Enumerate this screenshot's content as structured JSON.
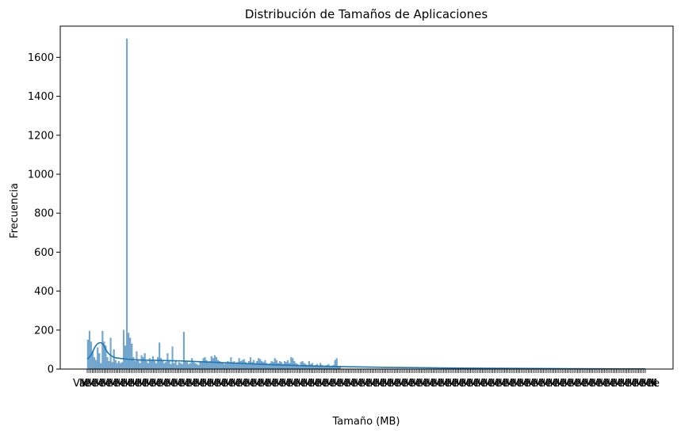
{
  "chart_data": {
    "type": "bar",
    "title": "Distribución de Tamaños de Aplicaciones",
    "xlabel": "Tamaño (MB)",
    "ylabel": "Frecuencia",
    "ylim": [
      0,
      1760
    ],
    "yticks": [
      0,
      200,
      400,
      600,
      800,
      1000,
      1200,
      1400,
      1600
    ],
    "grid": false,
    "legend": "none",
    "x_tick_labels_first": "Va",
    "x_tick_labels_last": "k",
    "colors": {
      "bar": "#4c8dbf",
      "kde": "#1f77b4",
      "axis": "#000000"
    },
    "series": [
      {
        "kind": "histogram",
        "values": [
          150,
          195,
          140,
          90,
          60,
          45,
          110,
          80,
          30,
          195,
          140,
          120,
          60,
          40,
          160,
          35,
          100,
          45,
          30,
          40,
          30,
          35,
          200,
          120,
          1695,
          185,
          160,
          130,
          60,
          40,
          90,
          50,
          30,
          70,
          60,
          80,
          40,
          30,
          55,
          45,
          65,
          40,
          30,
          60,
          135,
          55,
          40,
          30,
          35,
          80,
          40,
          25,
          115,
          30,
          40,
          20,
          35,
          30,
          25,
          190,
          40,
          35,
          25,
          30,
          55,
          40,
          30,
          25,
          20,
          35,
          40,
          55,
          60,
          45,
          35,
          40,
          65,
          55,
          70,
          60,
          45,
          40,
          35,
          30,
          25,
          30,
          40,
          35,
          60,
          35,
          40,
          30,
          35,
          55,
          40,
          45,
          50,
          35,
          30,
          40,
          60,
          35,
          45,
          30,
          40,
          55,
          50,
          40,
          35,
          45,
          30,
          25,
          30,
          40,
          35,
          55,
          45,
          30,
          40,
          35,
          25,
          40,
          35,
          45,
          30,
          60,
          55,
          40,
          30,
          25,
          20,
          35,
          40,
          30,
          25,
          20,
          40,
          25,
          30,
          15,
          20,
          25,
          15,
          30,
          20,
          10,
          15,
          20,
          25,
          15,
          10,
          20,
          45,
          55,
          10,
          15
        ]
      },
      {
        "kind": "kde",
        "x": [
          0,
          2,
          4,
          6,
          8,
          10,
          12,
          14,
          16,
          18,
          20,
          22,
          24,
          26,
          28,
          30,
          35,
          40,
          45,
          50,
          55,
          60,
          70,
          80,
          90,
          100,
          110,
          120,
          140,
          160,
          180,
          200,
          240,
          280,
          320,
          360,
          400,
          440,
          480,
          520,
          560,
          600
        ],
        "y": [
          50,
          60,
          72,
          90,
          110,
          125,
          133,
          136,
          132,
          120,
          100,
          85,
          75,
          68,
          62,
          58,
          55,
          52,
          50,
          48,
          47,
          46,
          45,
          44,
          43,
          42,
          40,
          38,
          34,
          30,
          26,
          22,
          16,
          12,
          9,
          7,
          5,
          4,
          3,
          2,
          1,
          1
        ]
      }
    ],
    "x_range": [
      0,
      600
    ]
  }
}
